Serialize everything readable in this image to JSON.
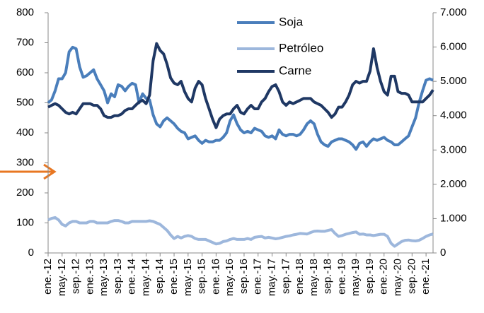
{
  "chart_data": {
    "type": "line",
    "categories": [
      "ene.-12",
      null,
      null,
      null,
      "may.-12",
      null,
      null,
      null,
      "sep.-12",
      null,
      null,
      null,
      "ene.-13",
      null,
      null,
      null,
      "may.-13",
      null,
      null,
      null,
      "sep.-13",
      null,
      null,
      null,
      "ene.-14",
      null,
      null,
      null,
      "may.-14",
      null,
      null,
      null,
      "sep.-14",
      null,
      null,
      null,
      "ene.-15",
      null,
      null,
      null,
      "may.-15",
      null,
      null,
      null,
      "sep.-15",
      null,
      null,
      null,
      "ene.-16",
      null,
      null,
      null,
      "may.-16",
      null,
      null,
      null,
      "sep.-16",
      null,
      null,
      null,
      "ene.-17",
      null,
      null,
      null,
      "may.-17",
      null,
      null,
      null,
      "sep.-17",
      null,
      null,
      null,
      "ene.-18",
      null,
      null,
      null,
      "may.-18",
      null,
      null,
      null,
      "sep.-18",
      null,
      null,
      null,
      "ene.-19",
      null,
      null,
      null,
      "may.-19",
      null,
      null,
      null,
      "sep.-19",
      null,
      null,
      null,
      "ene.-20",
      null,
      null,
      null,
      "may.-20",
      null,
      null,
      null,
      "sep.-20",
      null,
      null,
      null,
      "ene.-21",
      null,
      null
    ],
    "series": [
      {
        "name": "Soja",
        "color": "#4a7ebb",
        "values": [
          500,
          510,
          540,
          580,
          580,
          600,
          670,
          685,
          680,
          620,
          585,
          590,
          600,
          610,
          580,
          560,
          540,
          500,
          530,
          520,
          560,
          555,
          540,
          555,
          565,
          560,
          500,
          530,
          515,
          510,
          460,
          430,
          420,
          440,
          450,
          440,
          430,
          415,
          405,
          400,
          380,
          385,
          390,
          375,
          365,
          375,
          370,
          370,
          375,
          375,
          385,
          400,
          440,
          460,
          430,
          410,
          400,
          405,
          400,
          415,
          410,
          405,
          390,
          385,
          390,
          380,
          410,
          395,
          390,
          395,
          395,
          390,
          395,
          410,
          430,
          440,
          430,
          395,
          370,
          360,
          355,
          370,
          375,
          380,
          380,
          375,
          370,
          360,
          345,
          365,
          370,
          355,
          370,
          380,
          375,
          380,
          385,
          375,
          370,
          360,
          360,
          370,
          380,
          390,
          420,
          450,
          500,
          540,
          575,
          580,
          575
        ]
      },
      {
        "name": "Petróleo",
        "color": "#9db7dc",
        "values": [
          110,
          115,
          118,
          110,
          95,
          90,
          100,
          105,
          105,
          100,
          100,
          100,
          105,
          105,
          100,
          100,
          100,
          100,
          105,
          108,
          108,
          105,
          100,
          100,
          105,
          105,
          105,
          105,
          105,
          107,
          105,
          100,
          95,
          85,
          75,
          60,
          48,
          55,
          50,
          55,
          58,
          55,
          48,
          45,
          45,
          45,
          40,
          35,
          30,
          32,
          38,
          40,
          45,
          48,
          45,
          45,
          45,
          48,
          45,
          52,
          54,
          55,
          50,
          52,
          50,
          47,
          49,
          52,
          55,
          57,
          60,
          62,
          65,
          64,
          63,
          68,
          72,
          73,
          72,
          72,
          75,
          78,
          65,
          55,
          58,
          62,
          65,
          68,
          70,
          62,
          63,
          60,
          60,
          58,
          60,
          62,
          62,
          55,
          32,
          22,
          30,
          38,
          42,
          43,
          41,
          40,
          42,
          48,
          55,
          60,
          63
        ]
      },
      {
        "name": "Carne",
        "color": "#1f3864",
        "axis": "y2",
        "values": [
          4250,
          4300,
          4350,
          4300,
          4200,
          4100,
          4050,
          4100,
          4050,
          4200,
          4350,
          4350,
          4350,
          4300,
          4300,
          4200,
          4000,
          3950,
          3950,
          4000,
          4000,
          4050,
          4150,
          4200,
          4200,
          4300,
          4400,
          4450,
          4350,
          4600,
          5600,
          6100,
          5900,
          5800,
          5500,
          5100,
          4950,
          4900,
          5000,
          4700,
          4500,
          4400,
          4800,
          5000,
          4900,
          4500,
          4200,
          3900,
          3650,
          3900,
          4000,
          4050,
          4050,
          4200,
          4300,
          4100,
          4050,
          4200,
          4300,
          4200,
          4200,
          4400,
          4500,
          4700,
          4850,
          4900,
          4700,
          4400,
          4300,
          4400,
          4350,
          4400,
          4450,
          4500,
          4500,
          4500,
          4400,
          4350,
          4300,
          4200,
          4100,
          3950,
          4050,
          4250,
          4250,
          4400,
          4600,
          4900,
          5000,
          4950,
          5000,
          5000,
          5300,
          5950,
          5400,
          5000,
          4700,
          4600,
          5150,
          5150,
          4700,
          4650,
          4650,
          4600,
          4400,
          4400,
          4400,
          4400,
          4500,
          4600,
          4750
        ]
      }
    ],
    "ylim": [
      0,
      800
    ],
    "yticks": [
      0,
      100,
      200,
      300,
      400,
      500,
      600,
      700,
      800
    ],
    "y2lim": [
      0,
      7000
    ],
    "y2ticks": [
      0,
      {
        "value": 1000,
        "label": "1.000"
      },
      {
        "value": 2000,
        "label": "2.000"
      },
      {
        "value": 3000,
        "label": "3.000"
      },
      {
        "value": 4000,
        "label": "4.000"
      },
      {
        "value": 5000,
        "label": "5.000"
      },
      {
        "value": 6000,
        "label": "6.000"
      },
      {
        "value": 7000,
        "label": "7.000"
      }
    ],
    "legend": "top-right"
  }
}
